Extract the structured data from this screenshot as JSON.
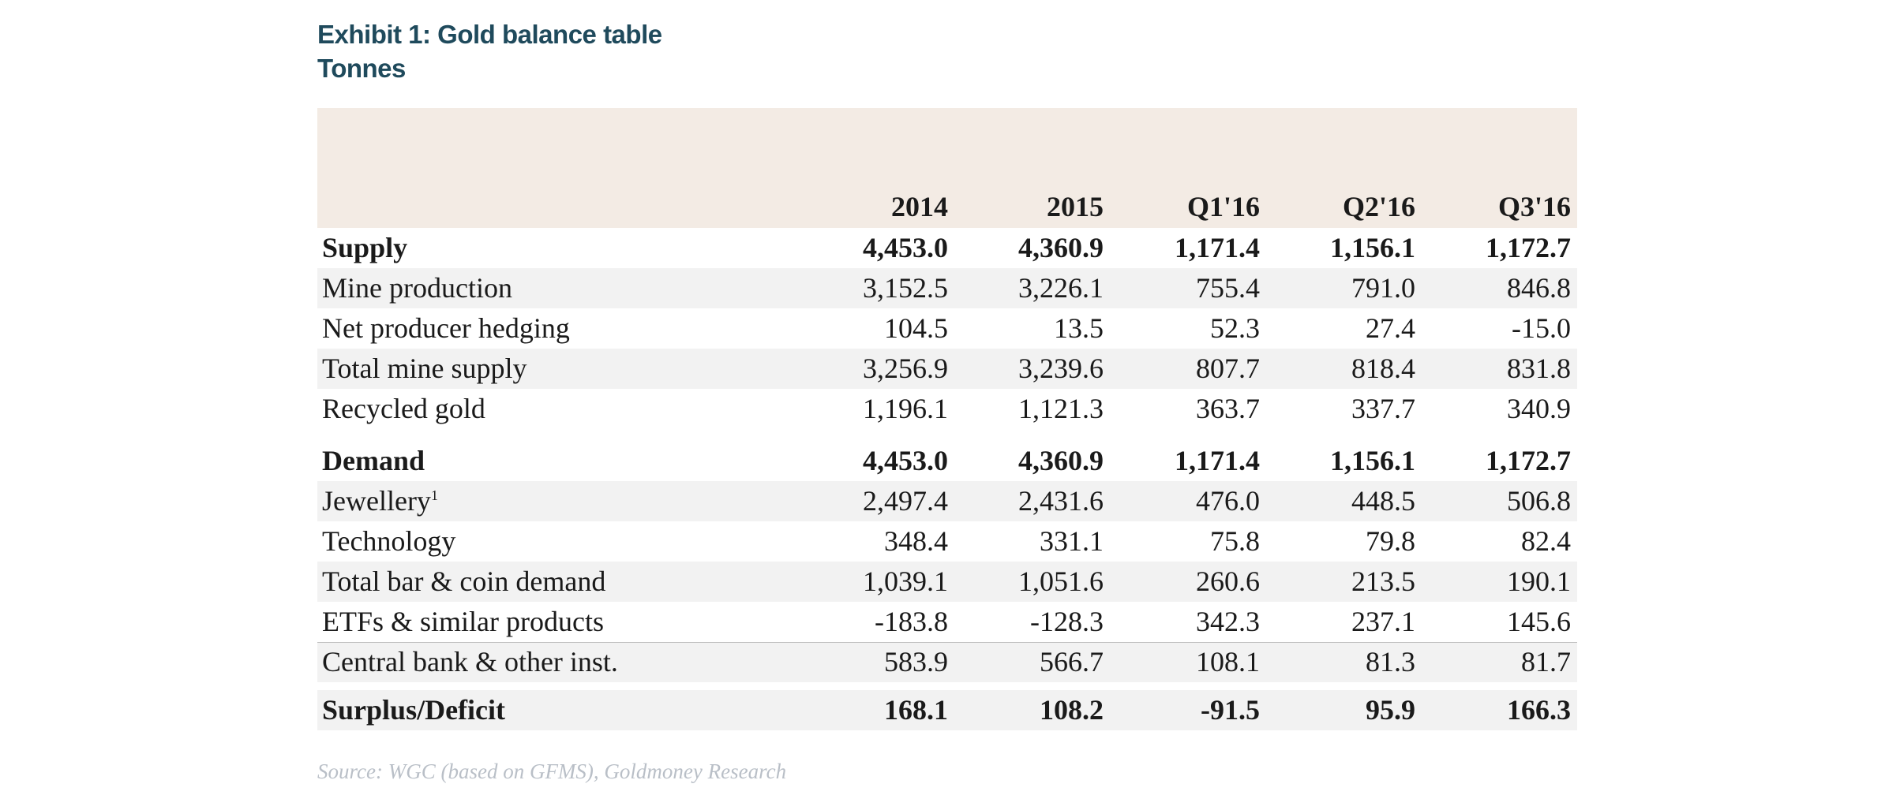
{
  "header": {
    "title": "Exhibit 1: Gold balance table",
    "subtitle": "Tonnes"
  },
  "chart_data": {
    "type": "table",
    "title": "Exhibit 1: Gold balance table",
    "subtitle": "Tonnes",
    "columns": [
      "2014",
      "2015",
      "Q1'16",
      "Q2'16",
      "Q3'16"
    ],
    "rows": [
      {
        "label": "Supply",
        "values": [
          "4,453.0",
          "4,360.9",
          "1,171.4",
          "1,156.1",
          "1,172.7"
        ]
      },
      {
        "label": "Mine production",
        "values": [
          "3,152.5",
          "3,226.1",
          "755.4",
          "791.0",
          "846.8"
        ]
      },
      {
        "label": "Net producer hedging",
        "values": [
          "104.5",
          "13.5",
          "52.3",
          "27.4",
          "-15.0"
        ]
      },
      {
        "label": "Total mine supply",
        "values": [
          "3,256.9",
          "3,239.6",
          "807.7",
          "818.4",
          "831.8"
        ]
      },
      {
        "label": "Recycled gold",
        "values": [
          "1,196.1",
          "1,121.3",
          "363.7",
          "337.7",
          "340.9"
        ]
      },
      {
        "label": "Demand",
        "values": [
          "4,453.0",
          "4,360.9",
          "1,171.4",
          "1,156.1",
          "1,172.7"
        ]
      },
      {
        "label": "Jewellery",
        "footnote": "1",
        "values": [
          "2,497.4",
          "2,431.6",
          "476.0",
          "448.5",
          "506.8"
        ]
      },
      {
        "label": "Technology",
        "values": [
          "348.4",
          "331.1",
          "75.8",
          "79.8",
          "82.4"
        ]
      },
      {
        "label": "Total bar & coin demand",
        "values": [
          "1,039.1",
          "1,051.6",
          "260.6",
          "213.5",
          "190.1"
        ]
      },
      {
        "label": "ETFs & similar products",
        "values": [
          "-183.8",
          "-128.3",
          "342.3",
          "237.1",
          "145.6"
        ]
      },
      {
        "label": "Central bank & other inst.",
        "values": [
          "583.9",
          "566.7",
          "108.1",
          "81.3",
          "81.7"
        ]
      },
      {
        "label": "Surplus/Deficit",
        "values": [
          "168.1",
          "108.2",
          "-91.5",
          "95.9",
          "166.3"
        ]
      }
    ],
    "source": "Source: WGC (based on GFMS), Goldmoney Research"
  },
  "colors": {
    "title": "#1f4a5c",
    "header_band": "#f3ebe4",
    "row_shade": "#f2f2f2",
    "source_text": "#b9bfc7"
  }
}
